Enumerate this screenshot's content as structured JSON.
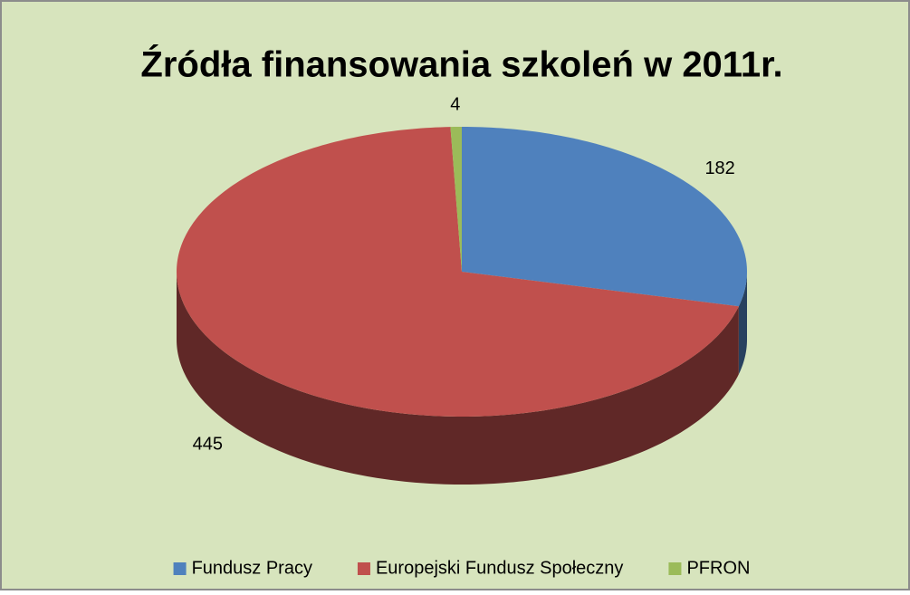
{
  "chart_data": {
    "type": "pie",
    "title": "Źródła finansowania szkoleń w 2011r.",
    "categories": [
      "Fundusz Pracy",
      "Europejski Fundusz Społeczny",
      "PFRON"
    ],
    "values": [
      182,
      445,
      4
    ],
    "colors": [
      "#4f81bd",
      "#c0504d",
      "#9bbb59"
    ],
    "legend": "bottom"
  }
}
